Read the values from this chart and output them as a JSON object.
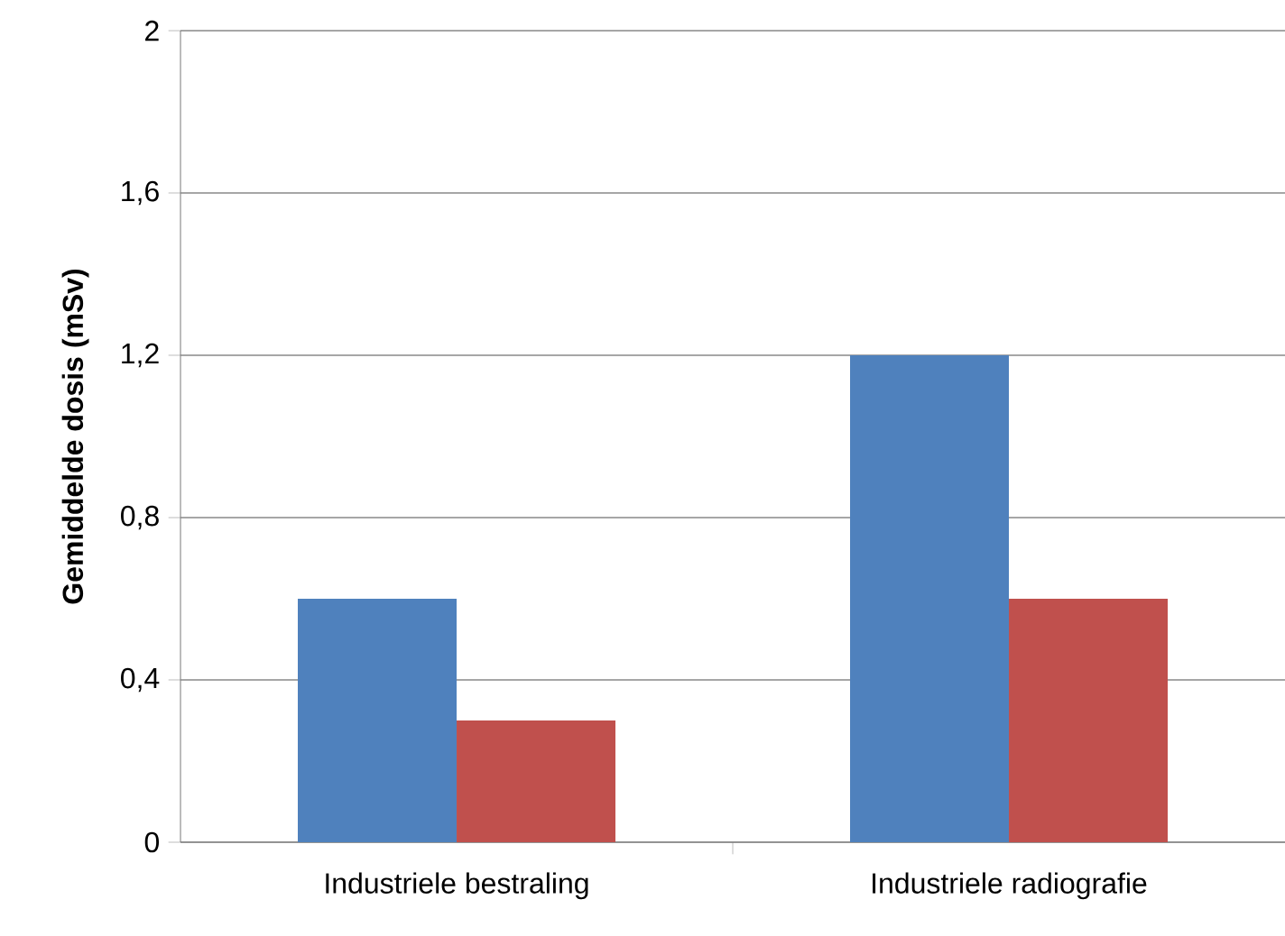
{
  "chart_data": {
    "type": "bar",
    "ylabel": "Gemiddelde dosis (mSv)",
    "categories": [
      "Industriele bestraling",
      "Industriele radiografie"
    ],
    "series": [
      {
        "color": "#4f81bd",
        "values": [
          0.6,
          1.2
        ]
      },
      {
        "color": "#c0504d",
        "values": [
          0.3,
          0.6
        ]
      }
    ],
    "ylim": [
      0,
      2
    ],
    "yticks": [
      0,
      {
        "value": 0.4,
        "label": "0,4"
      },
      {
        "value": 0.8,
        "label": "0,8"
      },
      {
        "value": 1.2,
        "label": "1,2"
      },
      {
        "value": 1.6,
        "label": "1,6"
      },
      2
    ],
    "grid": "y"
  }
}
